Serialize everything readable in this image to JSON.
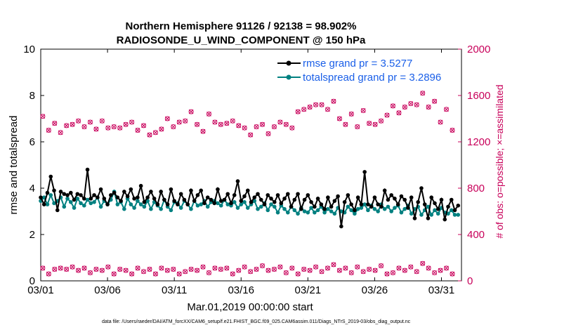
{
  "chart_data": {
    "type": "line",
    "title": "Northern Hemisphere 91126 / 92138 = 98.902%",
    "subtitle": "RADIOSONDE_U_WIND_COMPONENT @ 150 hPa",
    "xlabel": "Mar.01,2019 00:00:00 start",
    "ylabel": "rmse and totalspread",
    "y2label": "# of obs: o=possible; ×=assimilated",
    "footnote": "data file: /Users/raeder/DAI/ATM_forcXX/CAM6_setup/f.e21.FHIST_BGC.f09_025.CAM6assim.011/Diags_NTrS_2019-03/obs_diag_output.nc",
    "x_range": [
      0,
      31.5
    ],
    "ylim": [
      0,
      10
    ],
    "y2lim": [
      0,
      2000
    ],
    "x_ticks": [
      0,
      5,
      10,
      15,
      20,
      25,
      30
    ],
    "x_tick_labels": [
      "03/01",
      "03/06",
      "03/11",
      "03/16",
      "03/21",
      "03/26",
      "03/31"
    ],
    "y_ticks": [
      0,
      2,
      4,
      6,
      8,
      10
    ],
    "y2_ticks": [
      0,
      400,
      800,
      1200,
      1600,
      2000
    ],
    "legend": [
      {
        "label": "rmse grand pr = 3.5277",
        "color": "#000000"
      },
      {
        "label": "totalspread grand pr = 3.2896",
        "color": "#008080"
      }
    ],
    "series": [
      {
        "name": "rmse",
        "color": "#000000",
        "values": [
          3.6,
          3.3,
          3.8,
          4.5,
          3.9,
          3.05,
          3.85,
          3.75,
          3.7,
          3.8,
          3.5,
          3.75,
          3.7,
          3.55,
          4.8,
          3.55,
          3.7,
          3.6,
          3.95,
          3.55,
          3.3,
          3.7,
          3.8,
          3.6,
          3.45,
          3.85,
          3.65,
          3.95,
          3.55,
          3.6,
          4.1,
          3.4,
          3.6,
          3.85,
          3.55,
          3.3,
          3.85,
          3.5,
          3.3,
          3.95,
          3.45,
          3.3,
          3.75,
          3.5,
          3.3,
          3.9,
          3.45,
          3.7,
          3.9,
          3.35,
          3.6,
          3.5,
          3.35,
          3.95,
          3.45,
          3.5,
          3.75,
          3.35,
          3.7,
          4.3,
          3.45,
          3.65,
          3.9,
          3.4,
          3.6,
          3.75,
          3.5,
          3.3,
          3.7,
          3.55,
          3.4,
          3.7,
          3.35,
          3.55,
          3.75,
          3.2,
          3.5,
          3.75,
          3.1,
          3.5,
          3.7,
          3.4,
          3.2,
          3.55,
          3.3,
          3.1,
          3.6,
          3.2,
          3.45,
          3.65,
          2.35,
          3.4,
          3.7,
          3.3,
          3.05,
          3.6,
          3.3,
          4.7,
          3.3,
          3.2,
          3.6,
          3.3,
          3.2,
          3.9,
          3.5,
          3.7,
          3.55,
          3.3,
          3.65,
          3.5,
          3.15,
          3.6,
          2.7,
          3.4,
          4.0,
          3.3,
          2.7,
          3.6,
          3.35,
          3.1,
          3.5,
          2.65,
          3.2,
          3.5,
          3.05,
          3.25
        ],
        "x_step": 0.25
      },
      {
        "name": "totalspread",
        "color": "#008080",
        "values": [
          3.45,
          3.6,
          3.3,
          3.7,
          3.35,
          3.45,
          3.6,
          3.2,
          3.55,
          3.4,
          3.15,
          3.55,
          3.35,
          3.25,
          3.5,
          3.35,
          3.4,
          3.6,
          3.2,
          3.45,
          3.3,
          3.5,
          3.85,
          3.3,
          3.4,
          3.1,
          3.55,
          3.3,
          3.15,
          3.45,
          3.3,
          3.2,
          3.45,
          3.1,
          3.4,
          3.25,
          3.1,
          3.5,
          3.2,
          3.05,
          3.4,
          3.35,
          3.15,
          3.45,
          3.3,
          3.1,
          3.45,
          3.25,
          3.3,
          3.45,
          3.2,
          3.4,
          3.45,
          3.35,
          3.25,
          3.5,
          3.3,
          3.25,
          3.4,
          3.15,
          3.3,
          3.4,
          3.15,
          3.3,
          3.45,
          3.1,
          3.2,
          3.35,
          3.05,
          3.3,
          3.2,
          2.95,
          3.25,
          3.1,
          2.95,
          3.2,
          3.05,
          2.9,
          3.15,
          3.0,
          2.95,
          3.15,
          2.95,
          3.05,
          3.2,
          2.95,
          3.1,
          3.0,
          2.9,
          3.15,
          3.0,
          2.95,
          3.2,
          3.05,
          2.9,
          3.1,
          3.15,
          3.3,
          3.05,
          3.25,
          3.1,
          3.0,
          3.3,
          3.1,
          3.2,
          3.0,
          3.15,
          3.25,
          2.95,
          3.1,
          3.25,
          2.9,
          3.1,
          3.2,
          2.85,
          3.05,
          3.2,
          2.85,
          3.05,
          2.9,
          3.15,
          2.95,
          2.9,
          3.05,
          2.85,
          2.85
        ],
        "x_step": 0.25
      },
      {
        "name": "obs possible (o)",
        "color": "#c8005a",
        "axis": "right",
        "values": [
          1420,
          1300,
          1360,
          1280,
          1340,
          1350,
          1380,
          1330,
          1370,
          1310,
          1380,
          1320,
          1330,
          1320,
          1350,
          1370,
          1300,
          1340,
          1260,
          1280,
          1310,
          1400,
          1330,
          1370,
          1380,
          1460,
          1350,
          1290,
          1440,
          1370,
          1350,
          1360,
          1380,
          1340,
          1320,
          1260,
          1330,
          1350,
          1270,
          1330,
          1370,
          1350,
          1320,
          1460,
          1480,
          1500,
          1520,
          1520,
          1480,
          1550,
          1400,
          1350,
          1440,
          1330,
          1470,
          1360,
          1350,
          1380,
          1430,
          1510,
          1450,
          1500,
          1530,
          1520,
          1620,
          1500,
          1550,
          1370,
          1480,
          1300
        ],
        "x_step": 0.4444
      },
      {
        "name": "obs possible lower (o)",
        "color": "#c8005a",
        "axis": "right",
        "values": [
          110,
          60,
          100,
          110,
          100,
          120,
          90,
          110,
          70,
          100,
          90,
          120,
          60,
          100,
          90,
          60,
          110,
          80,
          100,
          60,
          110,
          90,
          100,
          60,
          80,
          100,
          90,
          120,
          70,
          110,
          100,
          110,
          60,
          90,
          120,
          80,
          100,
          130,
          90,
          100,
          120,
          70,
          110,
          60,
          100,
          90,
          120,
          80,
          110,
          140,
          90,
          110,
          70,
          120,
          80,
          100,
          90,
          130,
          60,
          70,
          110,
          90,
          120,
          80,
          150,
          110,
          70,
          90,
          110,
          60
        ],
        "x_step": 0.4444
      }
    ]
  }
}
